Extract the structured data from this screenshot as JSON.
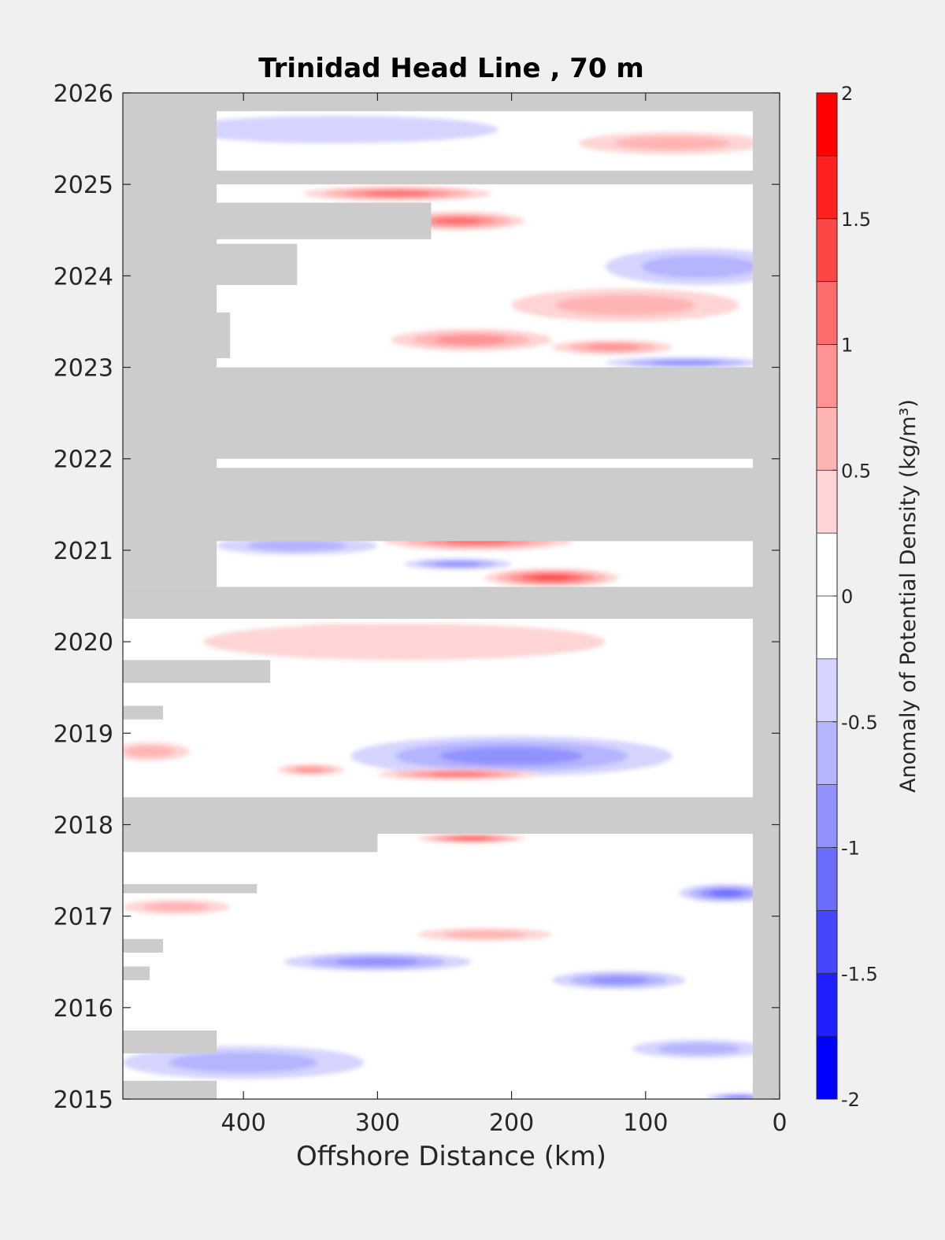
{
  "chart_data": {
    "type": "heatmap",
    "title": "Trinidad Head Line , 70 m",
    "xlabel": "Offshore Distance (km)",
    "ylabel": "",
    "xlim": [
      490,
      0
    ],
    "ylim": [
      2015,
      2026
    ],
    "x_reversed": true,
    "xticks": [
      400,
      300,
      200,
      100,
      0
    ],
    "yticks": [
      2015,
      2016,
      2017,
      2018,
      2019,
      2020,
      2021,
      2022,
      2023,
      2024,
      2025,
      2026
    ],
    "colorbar": {
      "label": "Anomaly of Potential Density (kg/m³)",
      "range": [
        -2,
        2
      ],
      "step": 0.25,
      "ticks": [
        -2,
        -1.5,
        -1,
        -0.5,
        0,
        0.5,
        1,
        1.5,
        2
      ],
      "colors": [
        "#0000ff",
        "#2020ff",
        "#4646ff",
        "#6c6cff",
        "#9292ff",
        "#b4b4ff",
        "#d4d4ff",
        "#ffffff",
        "#ffffff",
        "#ffd4d4",
        "#ffb4b4",
        "#ff9292",
        "#ff6c6c",
        "#ff4646",
        "#ff2020",
        "#ff0000"
      ]
    },
    "missing_color": "#cccccc",
    "missing_regions": [
      {
        "x": [
          490,
          0
        ],
        "y": [
          2022.0,
          2023.0
        ]
      },
      {
        "x": [
          490,
          0
        ],
        "y": [
          2021.1,
          2021.9
        ]
      },
      {
        "x": [
          490,
          0
        ],
        "y": [
          2017.9,
          2018.3
        ]
      },
      {
        "x": [
          490,
          0
        ],
        "y": [
          2020.25,
          2020.6
        ]
      },
      {
        "x": [
          490,
          0
        ],
        "y": [
          2025.0,
          2025.15
        ]
      },
      {
        "x": [
          490,
          0
        ],
        "y": [
          2025.8,
          2026.0
        ]
      },
      {
        "x": [
          20,
          0
        ],
        "y": [
          2015.0,
          2026.0
        ]
      },
      {
        "x": [
          490,
          420
        ],
        "y": [
          2020.6,
          2026.0
        ]
      },
      {
        "x": [
          490,
          360
        ],
        "y": [
          2023.9,
          2024.35
        ]
      },
      {
        "x": [
          490,
          260
        ],
        "y": [
          2024.4,
          2024.8
        ]
      },
      {
        "x": [
          490,
          410
        ],
        "y": [
          2023.1,
          2023.6
        ]
      },
      {
        "x": [
          490,
          380
        ],
        "y": [
          2019.55,
          2019.8
        ]
      },
      {
        "x": [
          490,
          460
        ],
        "y": [
          2019.15,
          2019.3
        ]
      },
      {
        "x": [
          490,
          300
        ],
        "y": [
          2017.7,
          2017.9
        ]
      },
      {
        "x": [
          490,
          390
        ],
        "y": [
          2017.25,
          2017.35
        ]
      },
      {
        "x": [
          490,
          460
        ],
        "y": [
          2016.6,
          2016.75
        ]
      },
      {
        "x": [
          490,
          470
        ],
        "y": [
          2016.3,
          2016.45
        ]
      },
      {
        "x": [
          490,
          420
        ],
        "y": [
          2015.5,
          2015.75
        ]
      },
      {
        "x": [
          490,
          420
        ],
        "y": [
          2015.0,
          2015.2
        ]
      }
    ],
    "anomaly_features": [
      {
        "x": 195,
        "y": 2018.75,
        "value": -2.0,
        "rx": 50,
        "ry": 0.12
      },
      {
        "x": 200,
        "y": 2018.75,
        "value": -0.8,
        "rx": 120,
        "ry": 0.22
      },
      {
        "x": 115,
        "y": 2023.68,
        "value": 1.5,
        "rx": 35,
        "ry": 0.12
      },
      {
        "x": 115,
        "y": 2023.68,
        "value": 0.6,
        "rx": 85,
        "ry": 0.18
      },
      {
        "x": 170,
        "y": 2020.7,
        "value": 1.3,
        "rx": 50,
        "ry": 0.1
      },
      {
        "x": 225,
        "y": 2021.1,
        "value": 1.1,
        "rx": 70,
        "ry": 0.1
      },
      {
        "x": 240,
        "y": 2024.6,
        "value": 1.2,
        "rx": 50,
        "ry": 0.1
      },
      {
        "x": 285,
        "y": 2024.9,
        "value": 1.2,
        "rx": 70,
        "ry": 0.08
      },
      {
        "x": 230,
        "y": 2023.3,
        "value": 0.9,
        "rx": 60,
        "ry": 0.12
      },
      {
        "x": 125,
        "y": 2023.22,
        "value": 0.9,
        "rx": 45,
        "ry": 0.08
      },
      {
        "x": 350,
        "y": 2025.55,
        "value": -0.9,
        "rx": 70,
        "ry": 0.1
      },
      {
        "x": 330,
        "y": 2025.6,
        "value": -0.4,
        "rx": 120,
        "ry": 0.15
      },
      {
        "x": 80,
        "y": 2025.45,
        "value": 0.5,
        "rx": 70,
        "ry": 0.12
      },
      {
        "x": 40,
        "y": 2024.1,
        "value": -1.2,
        "rx": 35,
        "ry": 0.12
      },
      {
        "x": 60,
        "y": 2024.1,
        "value": -0.5,
        "rx": 70,
        "ry": 0.2
      },
      {
        "x": 70,
        "y": 2023.05,
        "value": -0.9,
        "rx": 60,
        "ry": 0.06
      },
      {
        "x": 320,
        "y": 2020.08,
        "value": 0.8,
        "rx": 60,
        "ry": 0.12
      },
      {
        "x": 280,
        "y": 2020.0,
        "value": 0.4,
        "rx": 150,
        "ry": 0.2
      },
      {
        "x": 240,
        "y": 2018.55,
        "value": 1.0,
        "rx": 60,
        "ry": 0.06
      },
      {
        "x": 350,
        "y": 2018.6,
        "value": 0.9,
        "rx": 25,
        "ry": 0.06
      },
      {
        "x": 470,
        "y": 2018.8,
        "value": 0.6,
        "rx": 30,
        "ry": 0.1
      },
      {
        "x": 230,
        "y": 2017.85,
        "value": 1.3,
        "rx": 40,
        "ry": 0.05
      },
      {
        "x": 40,
        "y": 2017.25,
        "value": -1.1,
        "rx": 35,
        "ry": 0.1
      },
      {
        "x": 220,
        "y": 2016.8,
        "value": 0.7,
        "rx": 50,
        "ry": 0.07
      },
      {
        "x": 300,
        "y": 2016.5,
        "value": -0.8,
        "rx": 70,
        "ry": 0.1
      },
      {
        "x": 120,
        "y": 2016.3,
        "value": -0.8,
        "rx": 50,
        "ry": 0.1
      },
      {
        "x": 400,
        "y": 2015.4,
        "value": -0.7,
        "rx": 90,
        "ry": 0.18
      },
      {
        "x": 60,
        "y": 2015.55,
        "value": -0.7,
        "rx": 50,
        "ry": 0.1
      },
      {
        "x": 360,
        "y": 2021.05,
        "value": -0.7,
        "rx": 60,
        "ry": 0.1
      },
      {
        "x": 240,
        "y": 2020.85,
        "value": -0.8,
        "rx": 40,
        "ry": 0.06
      },
      {
        "x": 450,
        "y": 2017.1,
        "value": 0.5,
        "rx": 40,
        "ry": 0.08
      },
      {
        "x": 30,
        "y": 2015.02,
        "value": -1.2,
        "rx": 25,
        "ry": 0.04
      }
    ]
  }
}
